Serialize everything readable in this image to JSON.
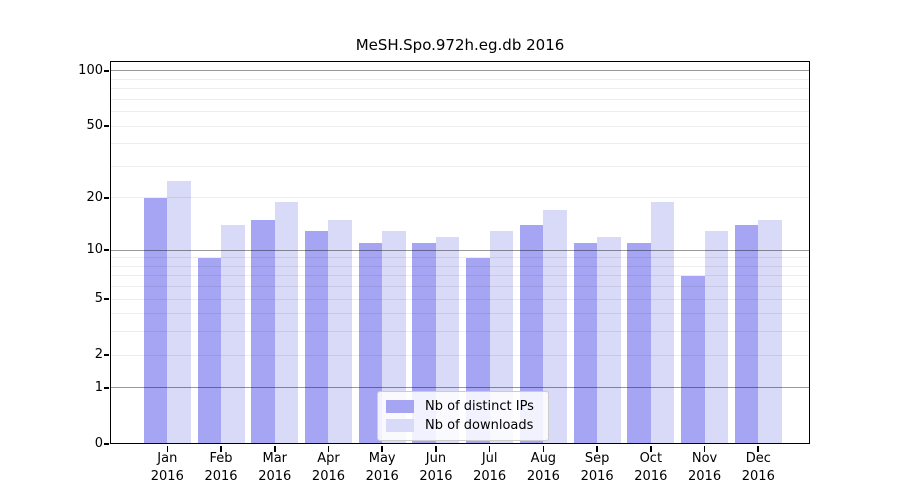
{
  "chart_data": {
    "type": "bar",
    "title": "MeSH.Spo.972h.eg.db 2016",
    "categories": [
      "Jan",
      "Feb",
      "Mar",
      "Apr",
      "May",
      "Jun",
      "Jul",
      "Aug",
      "Sep",
      "Oct",
      "Nov",
      "Dec"
    ],
    "category_year_label": "2016",
    "series": [
      {
        "name": "Nb of distinct IPs",
        "color": "#a5a5f3",
        "values": [
          20,
          9,
          15,
          13,
          11,
          11,
          9,
          14,
          11,
          11,
          7,
          14
        ]
      },
      {
        "name": "Nb of downloads",
        "color": "#d9d9f8",
        "values": [
          25,
          14,
          19,
          15,
          13,
          12,
          13,
          17,
          12,
          19,
          13,
          15
        ]
      }
    ],
    "xlabel": "",
    "ylabel": "",
    "y_scale": "log10(value+1)",
    "ylim": [
      0,
      113
    ],
    "y_tick_values": [
      0,
      1,
      2,
      5,
      10,
      20,
      50,
      100
    ],
    "y_strong_gridlines": [
      1,
      10,
      100
    ],
    "y_light_gridlines": [
      2,
      5,
      20,
      50
    ],
    "y_minor_gridlines": [
      3,
      4,
      6,
      7,
      8,
      9,
      30,
      40,
      60,
      70,
      80,
      90
    ],
    "grid": true,
    "legend_position": "lower-center"
  }
}
